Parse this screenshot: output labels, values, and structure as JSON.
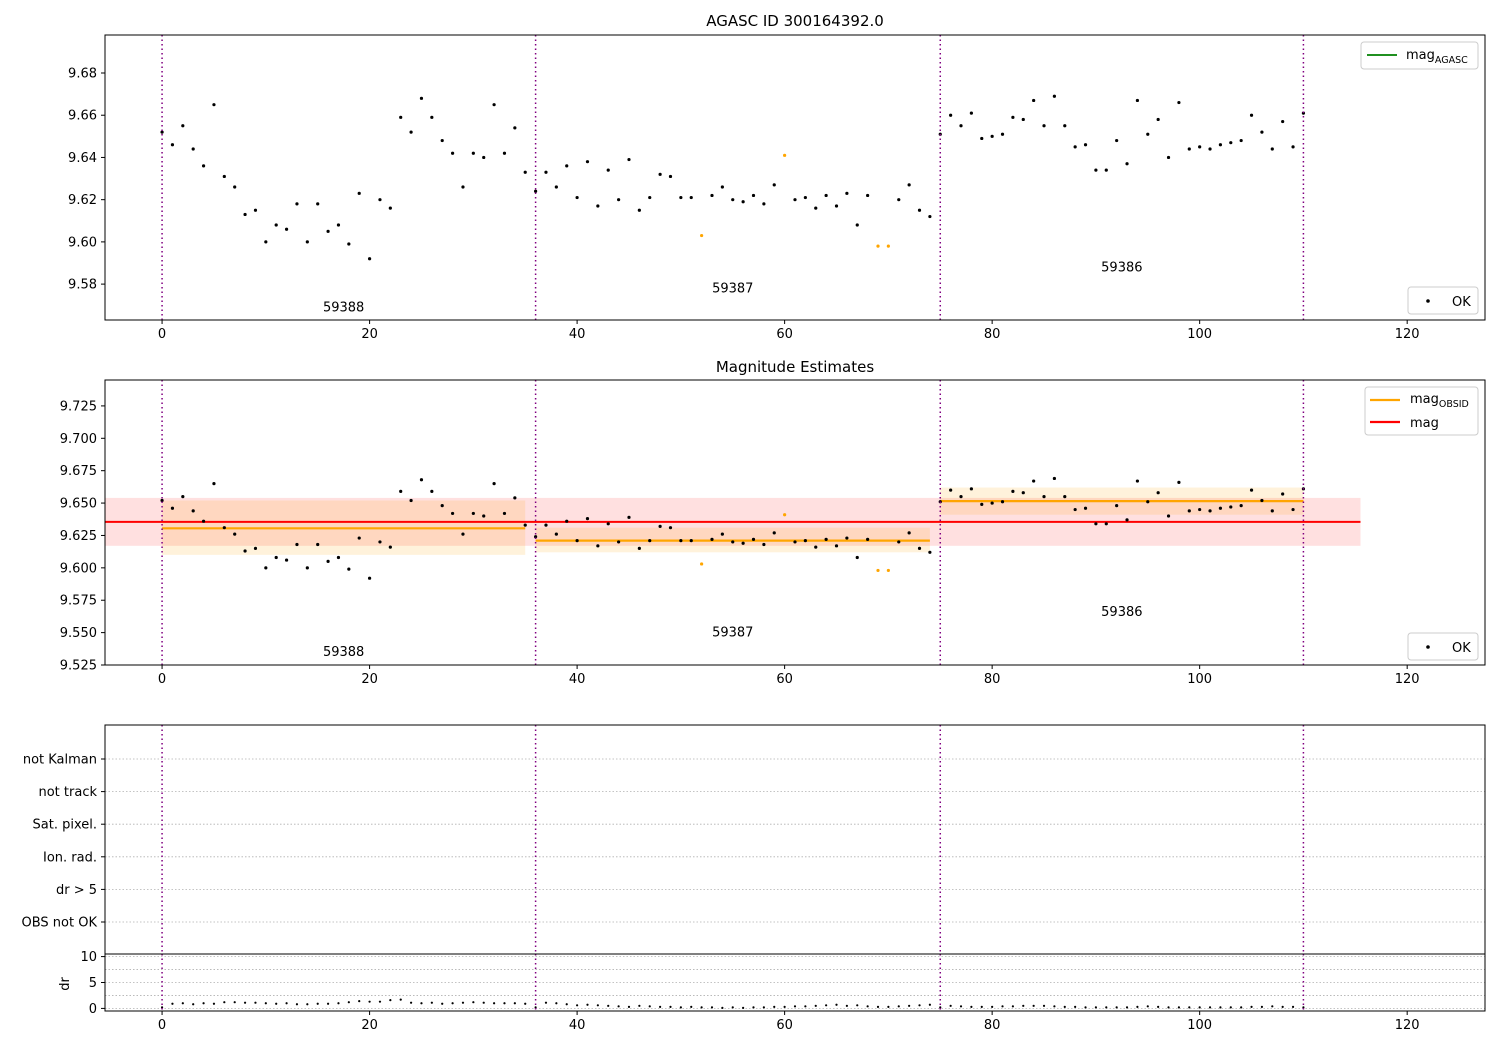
{
  "chart_data": [
    {
      "type": "scatter",
      "title": "AGASC ID 300164392.0",
      "xlim": [
        -5.5,
        127.5
      ],
      "ylim": [
        9.563,
        9.698
      ],
      "xticks": [
        0,
        20,
        40,
        60,
        80,
        100,
        120
      ],
      "yticks": [
        9.58,
        9.6,
        9.62,
        9.64,
        9.66,
        9.68
      ],
      "ytick_labels": [
        "9.58",
        "9.60",
        "9.62",
        "9.64",
        "9.66",
        "9.68"
      ],
      "legend_upper": {
        "position": "top-right",
        "label": "mag",
        "sub": "AGASC",
        "color": "#008000"
      },
      "legend_lower": {
        "position": "bottom-right",
        "label": "OK"
      },
      "obsid_labels": [
        {
          "text": "59388",
          "x": 17.5,
          "y": 9.567
        },
        {
          "text": "59387",
          "x": 55,
          "y": 9.576
        },
        {
          "text": "59386",
          "x": 92.5,
          "y": 9.586
        }
      ]
    },
    {
      "type": "scatter",
      "title": "Magnitude Estimates",
      "xlim": [
        -5.5,
        127.5
      ],
      "ylim": [
        9.525,
        9.745
      ],
      "xticks": [
        0,
        20,
        40,
        60,
        80,
        100,
        120
      ],
      "yticks": [
        9.525,
        9.55,
        9.575,
        9.6,
        9.625,
        9.65,
        9.675,
        9.7,
        9.725
      ],
      "ytick_labels": [
        "9.525",
        "9.550",
        "9.575",
        "9.600",
        "9.625",
        "9.650",
        "9.675",
        "9.700",
        "9.725"
      ],
      "legend_upper": [
        {
          "label": "mag",
          "sub": "OBSID",
          "color": "#ffa500"
        },
        {
          "label": "mag",
          "sub": "",
          "color": "#ff0000"
        }
      ],
      "legend_lower": {
        "position": "bottom-right",
        "label": "OK"
      },
      "overall_mag": {
        "value": 9.6355,
        "band": [
          9.617,
          9.654
        ],
        "x_range": [
          -5.5,
          115.5
        ],
        "color": "#ff0000"
      },
      "obsid_mags": [
        {
          "x_range": [
            0,
            35
          ],
          "value": 9.6305,
          "band": [
            9.61,
            9.652
          ]
        },
        {
          "x_range": [
            36,
            74
          ],
          "value": 9.621,
          "band": [
            9.612,
            9.631
          ]
        },
        {
          "x_range": [
            75,
            110
          ],
          "value": 9.6515,
          "band": [
            9.641,
            9.662
          ]
        }
      ],
      "obsid_labels": [
        {
          "text": "59388",
          "x": 17.5,
          "y": 9.532
        },
        {
          "text": "59387",
          "x": 55,
          "y": 9.547
        },
        {
          "text": "59386",
          "x": 92.5,
          "y": 9.563
        }
      ]
    },
    {
      "type": "scatter",
      "title": "",
      "xlim": [
        -5.5,
        127.5
      ],
      "flag_labels": [
        "not Kalman",
        "not track",
        "Sat. pixel.",
        "Ion. rad.",
        "dr > 5",
        "OBS not OK"
      ],
      "grid": true
    },
    {
      "type": "scatter",
      "title": "",
      "ylabel": "dr",
      "xlim": [
        -5.5,
        127.5
      ],
      "ylim": [
        -0.5,
        10.5
      ],
      "xticks": [
        0,
        20,
        40,
        60,
        80,
        100,
        120
      ],
      "yticks": [
        0,
        5,
        10
      ],
      "ytick_labels": [
        "0",
        "5",
        "10"
      ],
      "dr": [
        0.2,
        0.9,
        1.0,
        0.8,
        1.0,
        0.9,
        1.2,
        1.2,
        1.1,
        1.1,
        1.0,
        0.9,
        1.0,
        0.8,
        0.8,
        0.9,
        0.9,
        1.0,
        1.2,
        1.4,
        1.3,
        1.3,
        1.6,
        1.7,
        1.1,
        1.0,
        1.1,
        0.9,
        1.0,
        1.1,
        1.2,
        1.1,
        1.0,
        1.0,
        1.0,
        0.9,
        0.2,
        1.1,
        1.0,
        0.8,
        0.6,
        0.7,
        0.6,
        0.5,
        0.4,
        0.3,
        0.5,
        0.4,
        0.3,
        0.3,
        0.2,
        0.3,
        0.2,
        0.2,
        0.1,
        0.2,
        0.1,
        0.2,
        0.2,
        0.3,
        0.3,
        0.4,
        0.4,
        0.5,
        0.6,
        0.7,
        0.5,
        0.6,
        0.4,
        0.3,
        0.3,
        0.4,
        0.5,
        0.6,
        0.7,
        0.2,
        0.5,
        0.4,
        0.3,
        0.3,
        0.3,
        0.4,
        0.4,
        0.5,
        0.5,
        0.5,
        0.4,
        0.3,
        0.3,
        0.2,
        0.2,
        0.2,
        0.2,
        0.2,
        0.3,
        0.4,
        0.3,
        0.2,
        0.2,
        0.2,
        0.2,
        0.2,
        0.2,
        0.2,
        0.2,
        0.3,
        0.3,
        0.4,
        0.3,
        0.3,
        0.2
      ]
    }
  ],
  "observations": {
    "x": [
      0,
      1,
      2,
      3,
      4,
      5,
      6,
      7,
      8,
      9,
      10,
      11,
      12,
      13,
      14,
      15,
      16,
      17,
      18,
      19,
      20,
      21,
      22,
      23,
      24,
      25,
      26,
      27,
      28,
      29,
      30,
      31,
      32,
      33,
      34,
      35,
      36,
      37,
      38,
      39,
      40,
      41,
      42,
      43,
      44,
      45,
      46,
      47,
      48,
      49,
      50,
      51,
      52,
      53,
      54,
      55,
      56,
      57,
      58,
      59,
      60,
      61,
      62,
      63,
      64,
      65,
      66,
      67,
      68,
      69,
      70,
      71,
      72,
      73,
      74,
      75,
      76,
      77,
      78,
      79,
      80,
      81,
      82,
      83,
      84,
      85,
      86,
      87,
      88,
      89,
      90,
      91,
      92,
      93,
      94,
      95,
      96,
      97,
      98,
      99,
      100,
      101,
      102,
      103,
      104,
      105,
      106,
      107,
      108,
      109,
      110
    ],
    "mag": [
      9.652,
      9.646,
      9.655,
      9.644,
      9.636,
      9.665,
      9.631,
      9.626,
      9.613,
      9.615,
      9.6,
      9.608,
      9.606,
      9.618,
      9.6,
      9.618,
      9.605,
      9.608,
      9.599,
      9.623,
      9.592,
      9.62,
      9.616,
      9.659,
      9.652,
      9.668,
      9.659,
      9.648,
      9.642,
      9.626,
      9.642,
      9.64,
      9.665,
      9.642,
      9.654,
      9.633,
      9.624,
      9.633,
      9.626,
      9.636,
      9.621,
      9.638,
      9.617,
      9.634,
      9.62,
      9.639,
      9.615,
      9.621,
      9.632,
      9.631,
      9.621,
      9.621,
      9.603,
      9.622,
      9.626,
      9.62,
      9.619,
      9.622,
      9.618,
      9.627,
      9.641,
      9.62,
      9.621,
      9.616,
      9.622,
      9.617,
      9.623,
      9.608,
      9.622,
      9.598,
      9.598,
      9.62,
      9.627,
      9.615,
      9.612,
      9.651,
      9.66,
      9.655,
      9.661,
      9.649,
      9.65,
      9.651,
      9.659,
      9.658,
      9.667,
      9.655,
      9.669,
      9.655,
      9.645,
      9.646,
      9.634,
      9.634,
      9.648,
      9.637,
      9.667,
      9.651,
      9.658,
      9.64,
      9.666,
      9.644,
      9.645,
      9.644,
      9.646,
      9.647,
      9.648,
      9.66,
      9.652,
      9.644,
      9.657,
      9.645,
      9.661
    ],
    "ok_color": "#000000",
    "outlier_color": "#ffa500",
    "outliers": [
      52,
      60,
      69,
      70
    ],
    "boundaries": [
      0,
      36,
      75,
      110
    ],
    "boundary_color": "#800080"
  }
}
